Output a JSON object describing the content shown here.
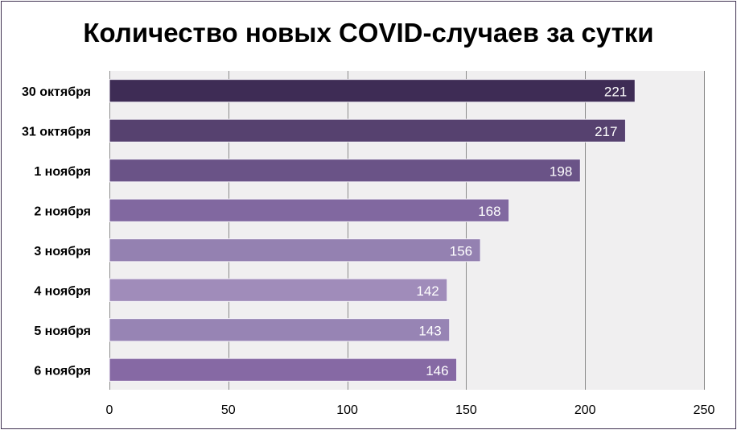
{
  "chart_data": {
    "type": "bar",
    "orientation": "horizontal",
    "title": "Количество новых COVID-случаев за сутки",
    "categories": [
      "30 октября",
      "31 октября",
      "1 ноября",
      "2 ноября",
      "3 ноября",
      "4 ноября",
      "5 ноября",
      "6 ноября"
    ],
    "values": [
      221,
      217,
      198,
      168,
      156,
      142,
      143,
      146
    ],
    "xlim": [
      0,
      250
    ],
    "xticks": [
      0,
      50,
      100,
      150,
      200,
      250
    ],
    "xlabel": "",
    "ylabel": "",
    "grid": "vertical",
    "data_labels": true,
    "legend": "none",
    "colors": {
      "plot_background": "#f0eff0",
      "grid": "#8c8c8c",
      "frame": "#3f3151",
      "bars": [
        "#3e2c55",
        "#56416f",
        "#6a5387",
        "#8168a0",
        "#9481b1",
        "#a08cba",
        "#9784b4",
        "#8669a4"
      ]
    }
  }
}
